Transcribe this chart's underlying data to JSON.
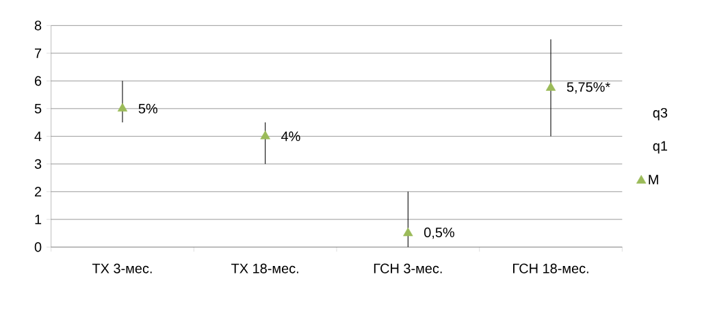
{
  "chart_data": {
    "type": "scatter",
    "categories": [
      "ТХ 3-мес.",
      "ТХ 18-мес.",
      "ГСН 3-мес.",
      "ГСН 18-мес."
    ],
    "series": [
      {
        "name": "M",
        "color": "#9bbb59",
        "marker": "triangle",
        "values": [
          5,
          4,
          0.5,
          5.75
        ],
        "errors": [
          [
            4.5,
            6
          ],
          [
            3,
            4.5
          ],
          [
            0,
            2
          ],
          [
            4,
            7.5
          ]
        ],
        "value_labels": [
          "5%",
          "4%",
          "0,5%",
          "5,75%*"
        ]
      }
    ],
    "annotations": [
      "q3",
      "q1"
    ],
    "ylim": [
      0,
      8
    ],
    "yticks": [
      0,
      1,
      2,
      3,
      4,
      5,
      6,
      7,
      8
    ],
    "grid": "y",
    "legend": "right"
  }
}
